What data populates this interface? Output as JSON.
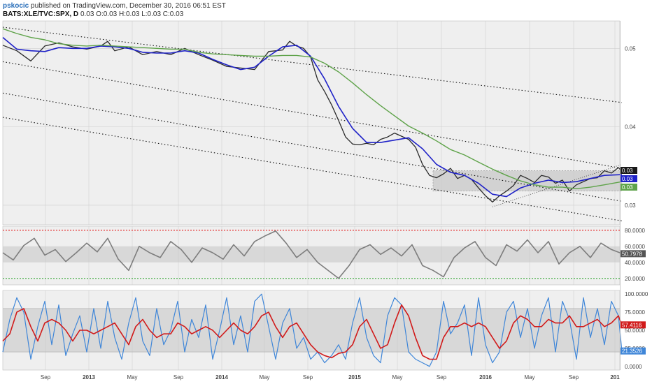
{
  "header": {
    "author": "pskocic",
    "published": "published on TradingView.com, December 30, 2016 06:51 EST",
    "symbol": "BATS:XLE/TVC:SPX, D",
    "ohlc": "0.03 O:0.03 H:0.03 L:0.03 C:0.03"
  },
  "colors": {
    "price": "#2b2b2b",
    "ma_fast": "#1f22c8",
    "ma_slow": "#5fa34a",
    "rsi": "#7d7d7d",
    "stoch_k": "#3f86d8",
    "stoch_d": "#d11a1a",
    "overbought": "#e53030",
    "oversold": "#37a837",
    "band_fill": "#c8c8c8",
    "grid": "#cfcfcf",
    "panel_bg": "#efefef"
  },
  "chart_data": [
    {
      "type": "line",
      "panel": "price",
      "ylim": [
        0.0275,
        0.0535
      ],
      "y_ticks": [
        "0.05",
        "0.04",
        "0.03"
      ],
      "y_tick_values": [
        0.05,
        0.04,
        0.03
      ],
      "series": [
        {
          "key": "close",
          "x": [
            0,
            20,
            40,
            60,
            80,
            100,
            120,
            140,
            150,
            160,
            180,
            200,
            220,
            240,
            260,
            280,
            300,
            320,
            340,
            360,
            380,
            400,
            410,
            420,
            430,
            440,
            450,
            460,
            470,
            480,
            490,
            500,
            510,
            520,
            530,
            540,
            550,
            560,
            570,
            580,
            590,
            600,
            610,
            620,
            630,
            640,
            650,
            660,
            670,
            680,
            690,
            700,
            710,
            720,
            730,
            740,
            750,
            760,
            770,
            780,
            790,
            800,
            810,
            820,
            830,
            840,
            850,
            860,
            870,
            880,
            885
          ],
          "values": [
            0.0504,
            0.0497,
            0.0484,
            0.0503,
            0.0507,
            0.0502,
            0.0499,
            0.0503,
            0.0509,
            0.0497,
            0.0502,
            0.0492,
            0.0496,
            0.0492,
            0.05,
            0.0492,
            0.0485,
            0.0477,
            0.0475,
            0.0473,
            0.0496,
            0.0498,
            0.0509,
            0.0503,
            0.05,
            0.0489,
            0.046,
            0.0445,
            0.0428,
            0.0408,
            0.0387,
            0.0378,
            0.0377,
            0.0379,
            0.0377,
            0.0384,
            0.0387,
            0.0392,
            0.0388,
            0.0384,
            0.0374,
            0.0352,
            0.0338,
            0.0335,
            0.034,
            0.0347,
            0.0334,
            0.0338,
            0.0333,
            0.0322,
            0.0312,
            0.0304,
            0.0312,
            0.0318,
            0.0325,
            0.0338,
            0.0334,
            0.0329,
            0.0338,
            0.0336,
            0.0328,
            0.0332,
            0.0318,
            0.0326,
            0.033,
            0.0334,
            0.0335,
            0.0344,
            0.0341,
            0.0348,
            0.0343
          ]
        },
        {
          "key": "ma_fast",
          "x": [
            0,
            20,
            40,
            60,
            80,
            100,
            120,
            140,
            160,
            180,
            200,
            220,
            240,
            260,
            280,
            300,
            320,
            340,
            360,
            380,
            400,
            420,
            440,
            460,
            480,
            500,
            520,
            540,
            560,
            580,
            600,
            620,
            640,
            660,
            680,
            700,
            720,
            740,
            760,
            780,
            800,
            820,
            840,
            860,
            885
          ],
          "values": [
            0.0514,
            0.0499,
            0.0497,
            0.0496,
            0.0501,
            0.05,
            0.05,
            0.0503,
            0.0502,
            0.05,
            0.0495,
            0.0494,
            0.0494,
            0.0497,
            0.0494,
            0.0486,
            0.0479,
            0.0473,
            0.0476,
            0.049,
            0.0502,
            0.0504,
            0.049,
            0.0461,
            0.0426,
            0.0398,
            0.038,
            0.038,
            0.0383,
            0.0386,
            0.0372,
            0.0352,
            0.0342,
            0.0338,
            0.0328,
            0.0314,
            0.0311,
            0.0322,
            0.0328,
            0.0332,
            0.0329,
            0.033,
            0.0334,
            0.0338,
            0.0339
          ]
        },
        {
          "key": "ma_slow",
          "x": [
            0,
            20,
            40,
            60,
            80,
            100,
            120,
            140,
            160,
            180,
            200,
            220,
            240,
            260,
            280,
            300,
            320,
            340,
            360,
            380,
            400,
            420,
            440,
            460,
            480,
            500,
            520,
            540,
            560,
            580,
            600,
            620,
            640,
            660,
            680,
            700,
            720,
            740,
            760,
            780,
            800,
            820,
            840,
            860,
            885
          ],
          "values": [
            0.0525,
            0.0519,
            0.0514,
            0.0511,
            0.0506,
            0.0504,
            0.0503,
            0.0504,
            0.0503,
            0.0502,
            0.0501,
            0.05,
            0.0499,
            0.0499,
            0.0495,
            0.0493,
            0.0492,
            0.0491,
            0.049,
            0.049,
            0.0491,
            0.0491,
            0.0489,
            0.0481,
            0.047,
            0.0456,
            0.0441,
            0.0427,
            0.0414,
            0.0401,
            0.0392,
            0.0382,
            0.0371,
            0.0364,
            0.0355,
            0.0346,
            0.0338,
            0.0331,
            0.0326,
            0.0323,
            0.0323,
            0.0321,
            0.0323,
            0.0326,
            0.033
          ]
        }
      ],
      "channel_lines": [
        {
          "x": [
            0,
            885
          ],
          "values": [
            0.0527,
            0.0431
          ]
        },
        {
          "x": [
            0,
            885
          ],
          "values": [
            0.0483,
            0.0347
          ]
        },
        {
          "x": [
            0,
            885
          ],
          "values": [
            0.0443,
            0.0305
          ]
        },
        {
          "x": [
            0,
            885
          ],
          "values": [
            0.0412,
            0.028
          ]
        }
      ],
      "support_line": {
        "x": [
          700,
          885
        ],
        "values": [
          0.0298,
          0.0352
        ]
      },
      "range_box": {
        "x": [
          615,
          885
        ],
        "y": [
          0.0318,
          0.0344
        ]
      },
      "last_value_tags": [
        "0.03",
        "0.03",
        "0.03"
      ]
    },
    {
      "type": "line",
      "panel": "rsi",
      "ylim": [
        12,
        85
      ],
      "y_ticks": [
        "80.0000",
        "60.0000",
        "40.0000",
        "20.0000"
      ],
      "y_tick_values": [
        80,
        60,
        40,
        20
      ],
      "overbought": 80,
      "oversold": 20,
      "band": [
        40,
        60
      ],
      "series": [
        {
          "key": "rsi",
          "x": [
            0,
            15,
            30,
            45,
            60,
            75,
            90,
            105,
            120,
            135,
            150,
            165,
            180,
            195,
            210,
            225,
            240,
            255,
            270,
            285,
            300,
            315,
            330,
            345,
            360,
            375,
            390,
            405,
            420,
            435,
            450,
            465,
            480,
            495,
            510,
            525,
            540,
            555,
            570,
            585,
            600,
            615,
            630,
            645,
            660,
            675,
            690,
            705,
            720,
            735,
            750,
            765,
            780,
            795,
            810,
            825,
            840,
            855,
            870,
            885
          ],
          "values": [
            52,
            43,
            61,
            70,
            49,
            56,
            41,
            52,
            64,
            53,
            70,
            44,
            30,
            60,
            52,
            46,
            66,
            56,
            40,
            58,
            52,
            44,
            62,
            48,
            66,
            73,
            79,
            64,
            46,
            56,
            40,
            30,
            20,
            36,
            56,
            62,
            50,
            58,
            48,
            62,
            36,
            30,
            22,
            46,
            58,
            66,
            46,
            36,
            62,
            54,
            68,
            52,
            66,
            38,
            52,
            60,
            46,
            64,
            56,
            51
          ]
        }
      ],
      "last_value_tag": "50.7978"
    },
    {
      "type": "line",
      "panel": "stochastic",
      "ylim": [
        -5,
        105
      ],
      "y_ticks": [
        "100.0000",
        "75.0000",
        "50.0000",
        "25.0000",
        "0.0000"
      ],
      "y_tick_values": [
        100,
        75,
        50,
        25,
        0
      ],
      "band": [
        20,
        80
      ],
      "series": [
        {
          "key": "k",
          "x": [
            0,
            10,
            20,
            30,
            40,
            50,
            60,
            70,
            80,
            90,
            100,
            110,
            120,
            130,
            140,
            150,
            160,
            170,
            180,
            190,
            200,
            210,
            220,
            230,
            240,
            250,
            260,
            270,
            280,
            290,
            300,
            310,
            320,
            330,
            340,
            350,
            360,
            370,
            380,
            390,
            400,
            410,
            420,
            430,
            440,
            450,
            460,
            470,
            480,
            490,
            500,
            510,
            520,
            530,
            540,
            550,
            560,
            570,
            580,
            590,
            600,
            610,
            620,
            630,
            640,
            650,
            660,
            670,
            680,
            690,
            700,
            710,
            720,
            730,
            740,
            750,
            760,
            770,
            780,
            790,
            800,
            810,
            820,
            830,
            840,
            850,
            860,
            870,
            880,
            885
          ],
          "values": [
            20,
            65,
            95,
            75,
            10,
            55,
            90,
            30,
            85,
            15,
            45,
            70,
            20,
            80,
            25,
            90,
            40,
            10,
            60,
            95,
            35,
            15,
            80,
            30,
            50,
            90,
            20,
            65,
            40,
            85,
            10,
            50,
            95,
            30,
            70,
            20,
            90,
            100,
            55,
            10,
            60,
            80,
            25,
            40,
            10,
            20,
            5,
            15,
            30,
            10,
            60,
            95,
            40,
            15,
            5,
            70,
            95,
            85,
            20,
            10,
            5,
            0,
            20,
            90,
            45,
            60,
            85,
            15,
            95,
            30,
            5,
            20,
            75,
            90,
            40,
            80,
            25,
            70,
            95,
            20,
            90,
            65,
            10,
            95,
            40,
            80,
            30,
            90,
            70,
            21
          ]
        },
        {
          "key": "d",
          "x": [
            0,
            10,
            20,
            30,
            40,
            50,
            60,
            70,
            80,
            90,
            100,
            110,
            120,
            130,
            140,
            150,
            160,
            170,
            180,
            190,
            200,
            210,
            220,
            230,
            240,
            250,
            260,
            270,
            280,
            290,
            300,
            310,
            320,
            330,
            340,
            350,
            360,
            370,
            380,
            390,
            400,
            410,
            420,
            430,
            440,
            450,
            460,
            470,
            480,
            490,
            500,
            510,
            520,
            530,
            540,
            550,
            560,
            570,
            580,
            590,
            600,
            610,
            620,
            630,
            640,
            650,
            660,
            670,
            680,
            690,
            700,
            710,
            720,
            730,
            740,
            750,
            760,
            770,
            780,
            790,
            800,
            810,
            820,
            830,
            840,
            850,
            860,
            870,
            880,
            885
          ],
          "values": [
            35,
            45,
            75,
            80,
            55,
            35,
            60,
            65,
            60,
            50,
            35,
            50,
            50,
            45,
            50,
            55,
            60,
            45,
            30,
            55,
            65,
            50,
            40,
            45,
            45,
            60,
            55,
            45,
            50,
            55,
            50,
            40,
            50,
            60,
            50,
            45,
            55,
            70,
            75,
            55,
            40,
            55,
            60,
            45,
            30,
            20,
            15,
            12,
            18,
            20,
            30,
            55,
            65,
            45,
            25,
            30,
            60,
            85,
            70,
            40,
            15,
            10,
            10,
            40,
            55,
            55,
            60,
            55,
            60,
            55,
            40,
            25,
            35,
            60,
            70,
            65,
            55,
            55,
            65,
            60,
            60,
            70,
            55,
            55,
            60,
            65,
            55,
            60,
            70,
            57
          ]
        }
      ],
      "last_value_tags": [
        "57.4116",
        "21.3526"
      ]
    }
  ],
  "x_axis": {
    "labels": [
      "Sep",
      "2013",
      "May",
      "Sep",
      "2014",
      "May",
      "Sep",
      "2015",
      "May",
      "Sep",
      "2016",
      "May",
      "Sep",
      "201"
    ],
    "positions": [
      65,
      127,
      189,
      255,
      317,
      378,
      440,
      507,
      568,
      631,
      694,
      757,
      820,
      879
    ],
    "bold": [
      false,
      true,
      false,
      false,
      true,
      false,
      false,
      true,
      false,
      false,
      true,
      false,
      false,
      true
    ]
  }
}
